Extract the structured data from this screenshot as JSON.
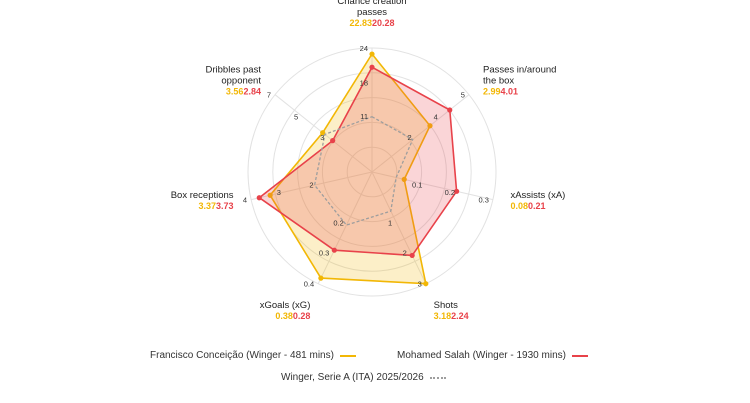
{
  "chart_data": {
    "type": "radar",
    "axes": [
      {
        "name": "Chance creation\npasses",
        "ticks": [
          "11",
          "18",
          "24"
        ],
        "max": 24
      },
      {
        "name": "Passes in/around\nthe box",
        "ticks": [
          "2",
          "4",
          "5"
        ],
        "max": 5
      },
      {
        "name": "xAssists (xA)",
        "ticks": [
          "0.1",
          "0.2",
          "0.3"
        ],
        "max": 0.3
      },
      {
        "name": "Shots",
        "ticks": [
          "1",
          "2",
          "3"
        ],
        "max": 3
      },
      {
        "name": "xGoals (xG)",
        "ticks": [
          "0.2",
          "0.3",
          "0.4"
        ],
        "max": 0.4
      },
      {
        "name": "Box receptions",
        "ticks": [
          "2",
          "3",
          "4"
        ],
        "max": 4
      },
      {
        "name": "Dribbles past\nopponent",
        "ticks": [
          "3",
          "5",
          "7"
        ],
        "max": 7
      }
    ],
    "series": [
      {
        "name": "Francisco Conceição (Winger - 481 mins)",
        "color": "#f2b705",
        "values": [
          22.83,
          2.99,
          0.08,
          3.18,
          0.38,
          3.37,
          3.56
        ],
        "labels": [
          "22.83",
          "2.99",
          "0.08",
          "3.18",
          "0.38",
          "3.37",
          "3.56"
        ]
      },
      {
        "name": "Mohamed Salah (Winger - 1930 mins)",
        "color": "#e8424a",
        "values": [
          20.28,
          4.01,
          0.21,
          2.24,
          0.28,
          3.73,
          2.84
        ],
        "labels": [
          "20.28",
          "4.01",
          "0.21",
          "2.24",
          "0.28",
          "3.73",
          "2.84"
        ]
      },
      {
        "name": "Winger, Serie A (ITA) 2025/2026",
        "color": "#9e9e9e",
        "dashed": true,
        "values": [
          10.7,
          2.1,
          0.06,
          1.05,
          0.19,
          1.9,
          3.4
        ]
      }
    ],
    "grid": true,
    "legend_position": "bottom"
  }
}
